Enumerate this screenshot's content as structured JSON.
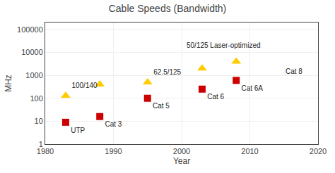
{
  "chart_data": {
    "type": "scatter",
    "title": "Cable Speeds (Bandwidth)",
    "x_label": "Year",
    "y_label": "MHz",
    "log": "y",
    "grid": true,
    "xlim": [
      1980,
      2020
    ],
    "ylim": [
      1,
      200000
    ],
    "xticks": [
      1980,
      1990,
      2000,
      2010,
      2020
    ],
    "yticks": [
      1,
      10,
      100,
      1000,
      10000,
      100000
    ],
    "x": [
      1983,
      1988,
      1995,
      2003,
      2008
    ],
    "series": [
      {
        "color": "#cc0000",
        "marker": "square",
        "values": [
          9,
          16,
          100,
          250,
          600
        ],
        "labels": [
          "UTP",
          "Cat 3",
          "Cat 5",
          "Cat 6",
          "Cat 6A"
        ]
      },
      {
        "color": "#ffcc00",
        "marker": "triangle",
        "values": [
          130,
          400,
          500,
          2000,
          4000
        ],
        "labels": [
          "100/140",
          null,
          "62.5/125",
          null,
          null
        ]
      }
    ],
    "annotations": [
      {
        "text": "50/125 Laser-optimized",
        "x": 2000.5,
        "y": 20000
      },
      {
        "text": "Cat 8",
        "x": 2015,
        "y": 1500
      }
    ]
  }
}
